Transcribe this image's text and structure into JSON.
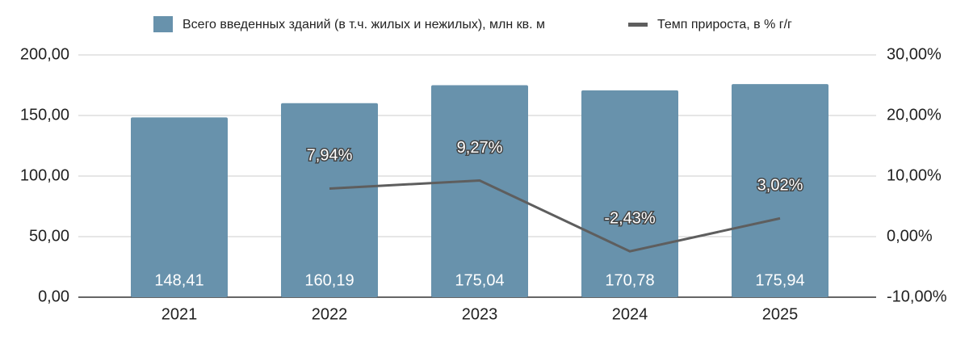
{
  "chart_data": {
    "type": "combo",
    "categories": [
      "2021",
      "2022",
      "2023",
      "2024",
      "2025"
    ],
    "series": [
      {
        "name": "Всего введенных зданий (в т.ч. жилых и нежилых), млн кв. м",
        "type": "bar",
        "color": "#6892ac",
        "values": [
          148.41,
          160.19,
          175.04,
          170.78,
          175.94
        ],
        "value_labels": [
          "148,41",
          "160,19",
          "175,04",
          "170,78",
          "175,94"
        ]
      },
      {
        "name": "Темп прироста, в % г/г",
        "type": "line",
        "axis": "y2",
        "color": "#5e5e5e",
        "values": [
          null,
          7.94,
          9.27,
          -2.43,
          3.02
        ],
        "value_labels": [
          null,
          "7,94%",
          "9,27%",
          "-2,43%",
          "3,02%"
        ]
      }
    ],
    "ylim": [
      0,
      200
    ],
    "yticks": [
      {
        "value": 0,
        "label": "0,00"
      },
      {
        "value": 50,
        "label": "50,00"
      },
      {
        "value": 100,
        "label": "100,00"
      },
      {
        "value": 150,
        "label": "150,00"
      },
      {
        "value": 200,
        "label": "200,00"
      }
    ],
    "y2lim": [
      -10,
      30
    ],
    "y2ticks": [
      {
        "value": -10,
        "label": "-10,00%"
      },
      {
        "value": 0,
        "label": "0,00%"
      },
      {
        "value": 10,
        "label": "10,00%"
      },
      {
        "value": 20,
        "label": "20,00%"
      },
      {
        "value": 30,
        "label": "30,00%"
      }
    ],
    "grid": true
  }
}
